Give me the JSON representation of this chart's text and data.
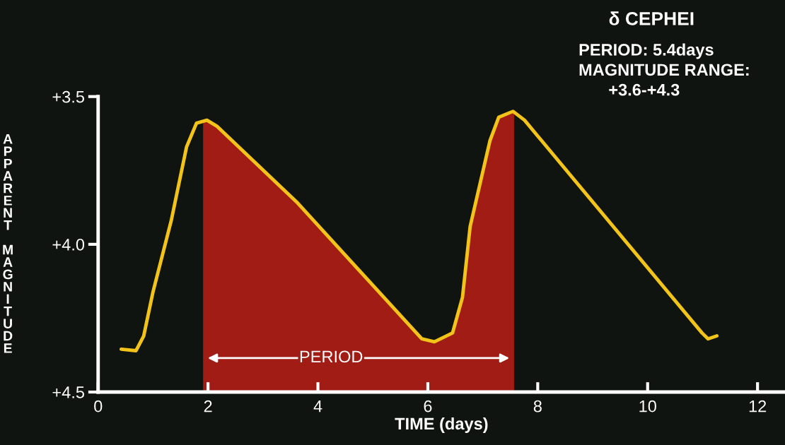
{
  "chart_data": {
    "type": "line",
    "title": "δ CEPHEI",
    "xlabel": "TIME (days)",
    "ylabel": "APPARENT MAGNITUDE",
    "annotations": [
      "PERIOD",
      "PERIOD: 5.4days",
      "MAGNITUDE RANGE:",
      "+3.6-+4.3"
    ],
    "series": [
      {
        "type": "area",
        "color": "#a01c14",
        "x": [
          1.91,
          1.91,
          1.98,
          2.16,
          3.63,
          5.89,
          6.12,
          6.45,
          6.63,
          6.77,
          7.13,
          7.29,
          7.55,
          7.57,
          7.57
        ],
        "values": [
          4.5,
          3.585,
          3.58,
          3.6,
          3.86,
          4.32,
          4.33,
          4.3,
          4.18,
          3.94,
          3.65,
          3.57,
          3.55,
          3.552,
          4.5
        ]
      },
      {
        "color": "#f2c318",
        "x": [
          0.42,
          0.69,
          0.83,
          1.0,
          1.33,
          1.61,
          1.79,
          1.98,
          2.16,
          3.63,
          5.89,
          6.12,
          6.45,
          6.63,
          6.77,
          7.13,
          7.29,
          7.55,
          7.76,
          10.99,
          11.1,
          11.26
        ],
        "values": [
          4.355,
          4.36,
          4.31,
          4.16,
          3.92,
          3.67,
          3.59,
          3.58,
          3.6,
          3.86,
          4.32,
          4.33,
          4.3,
          4.18,
          3.94,
          3.65,
          3.57,
          3.55,
          3.58,
          4.3,
          4.32,
          4.31
        ]
      }
    ],
    "xlim": [
      0,
      12.5
    ],
    "xticks": [
      0,
      2,
      4,
      6,
      8,
      10,
      12
    ],
    "ylim": [
      4.5,
      3.5
    ],
    "yticks": [
      {
        "value": 3.5,
        "label": "+3.5"
      },
      {
        "value": 4.0,
        "label": "+4.0"
      },
      {
        "value": 4.5,
        "label": "+4.5"
      }
    ],
    "grid": false,
    "legend": false,
    "marker": "none",
    "line_style": "solid"
  }
}
